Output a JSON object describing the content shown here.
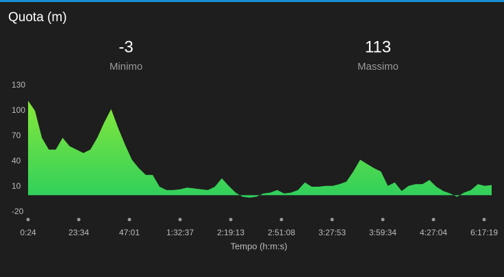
{
  "chart_data": {
    "type": "area",
    "title": "Quota (m)",
    "stats": [
      {
        "value": -3,
        "label": "Minimo"
      },
      {
        "value": 113,
        "label": "Massimo"
      }
    ],
    "xlabel": "Tempo (h:m:s)",
    "xticks": [
      "0:24",
      "23:34",
      "47:01",
      "1:32:37",
      "2:19:13",
      "2:51:08",
      "3:27:53",
      "3:59:34",
      "4:27:04",
      "6:17:19"
    ],
    "values": [
      112,
      100,
      68,
      54,
      54,
      68,
      58,
      54,
      50,
      54,
      68,
      86,
      102,
      80,
      60,
      42,
      32,
      24,
      24,
      10,
      6,
      6,
      7,
      9,
      8,
      7,
      6,
      10,
      20,
      11,
      3,
      -2,
      -3,
      -2,
      2,
      3,
      6,
      2,
      3,
      6,
      15,
      10,
      10,
      11,
      11,
      13,
      16,
      28,
      42,
      37,
      32,
      28,
      11,
      15,
      5,
      11,
      13,
      13,
      18,
      10,
      5,
      2,
      -2,
      3,
      6,
      13,
      11,
      12
    ],
    "ylim": [
      -20,
      130
    ],
    "yticks": [
      -20,
      10,
      40,
      70,
      100,
      130
    ],
    "colors": [
      "#86e83a",
      "#2fcf5c"
    ]
  }
}
